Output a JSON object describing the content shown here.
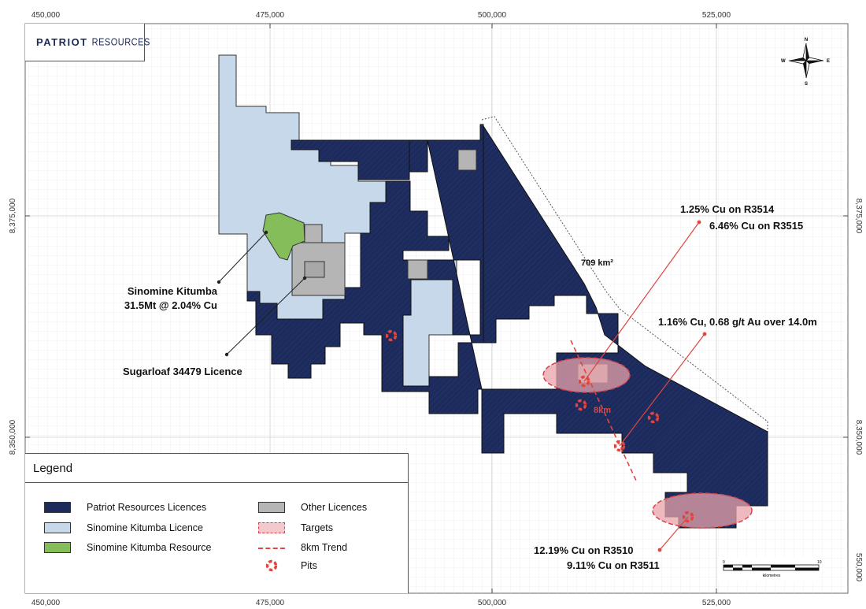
{
  "brand": {
    "name_bold": "PATRIOT",
    "name_light": "RESOURCES"
  },
  "axes": {
    "x_top": [
      "450,000",
      "475,000",
      "500,000",
      "525,000"
    ],
    "x_bottom": [
      "450,000",
      "475,000",
      "500,000",
      "525,000"
    ],
    "y_left": [
      "8,375,000",
      "8,350,000"
    ],
    "y_right": [
      "8,375,000",
      "8,350,000",
      "550,000"
    ]
  },
  "compass": {
    "n": "N",
    "s": "S",
    "e": "E",
    "w": "W"
  },
  "area_label": "709 km²",
  "trend_label": "8km",
  "annotations": {
    "kitumba_line1": "Sinomine Kitumba",
    "kitumba_line2": "31.5Mt @ 2.04% Cu",
    "sugarloaf": "Sugarloaf 34479 Licence",
    "r3514": "1.25% Cu on R3514",
    "r3515": "6.46% Cu on R3515",
    "gold": "1.16% Cu, 0.68 g/t Au over 14.0m",
    "r3510": "12.19% Cu on R3510",
    "r3511": "9.11% Cu on R3511"
  },
  "scale_bar": {
    "start": "0",
    "end": "10",
    "unit": "kilometres"
  },
  "legend": {
    "title": "Legend",
    "items": {
      "patriot": "Patriot Resources Licences",
      "sinomine_licence": "Sinomine Kitumba Licence",
      "sinomine_resource": "Sinomine Kitumba Resource",
      "other": "Other Licences",
      "targets": "Targets",
      "trend": "8km Trend",
      "pits": "Pits"
    }
  },
  "colors": {
    "patriot": "#1c2a5c",
    "sinomine_licence": "#c6d8ea",
    "sinomine_resource": "#84bd5a",
    "other": "#b5b5b5",
    "target": "#e8a3ab",
    "annotation_line": "#e0453f"
  }
}
